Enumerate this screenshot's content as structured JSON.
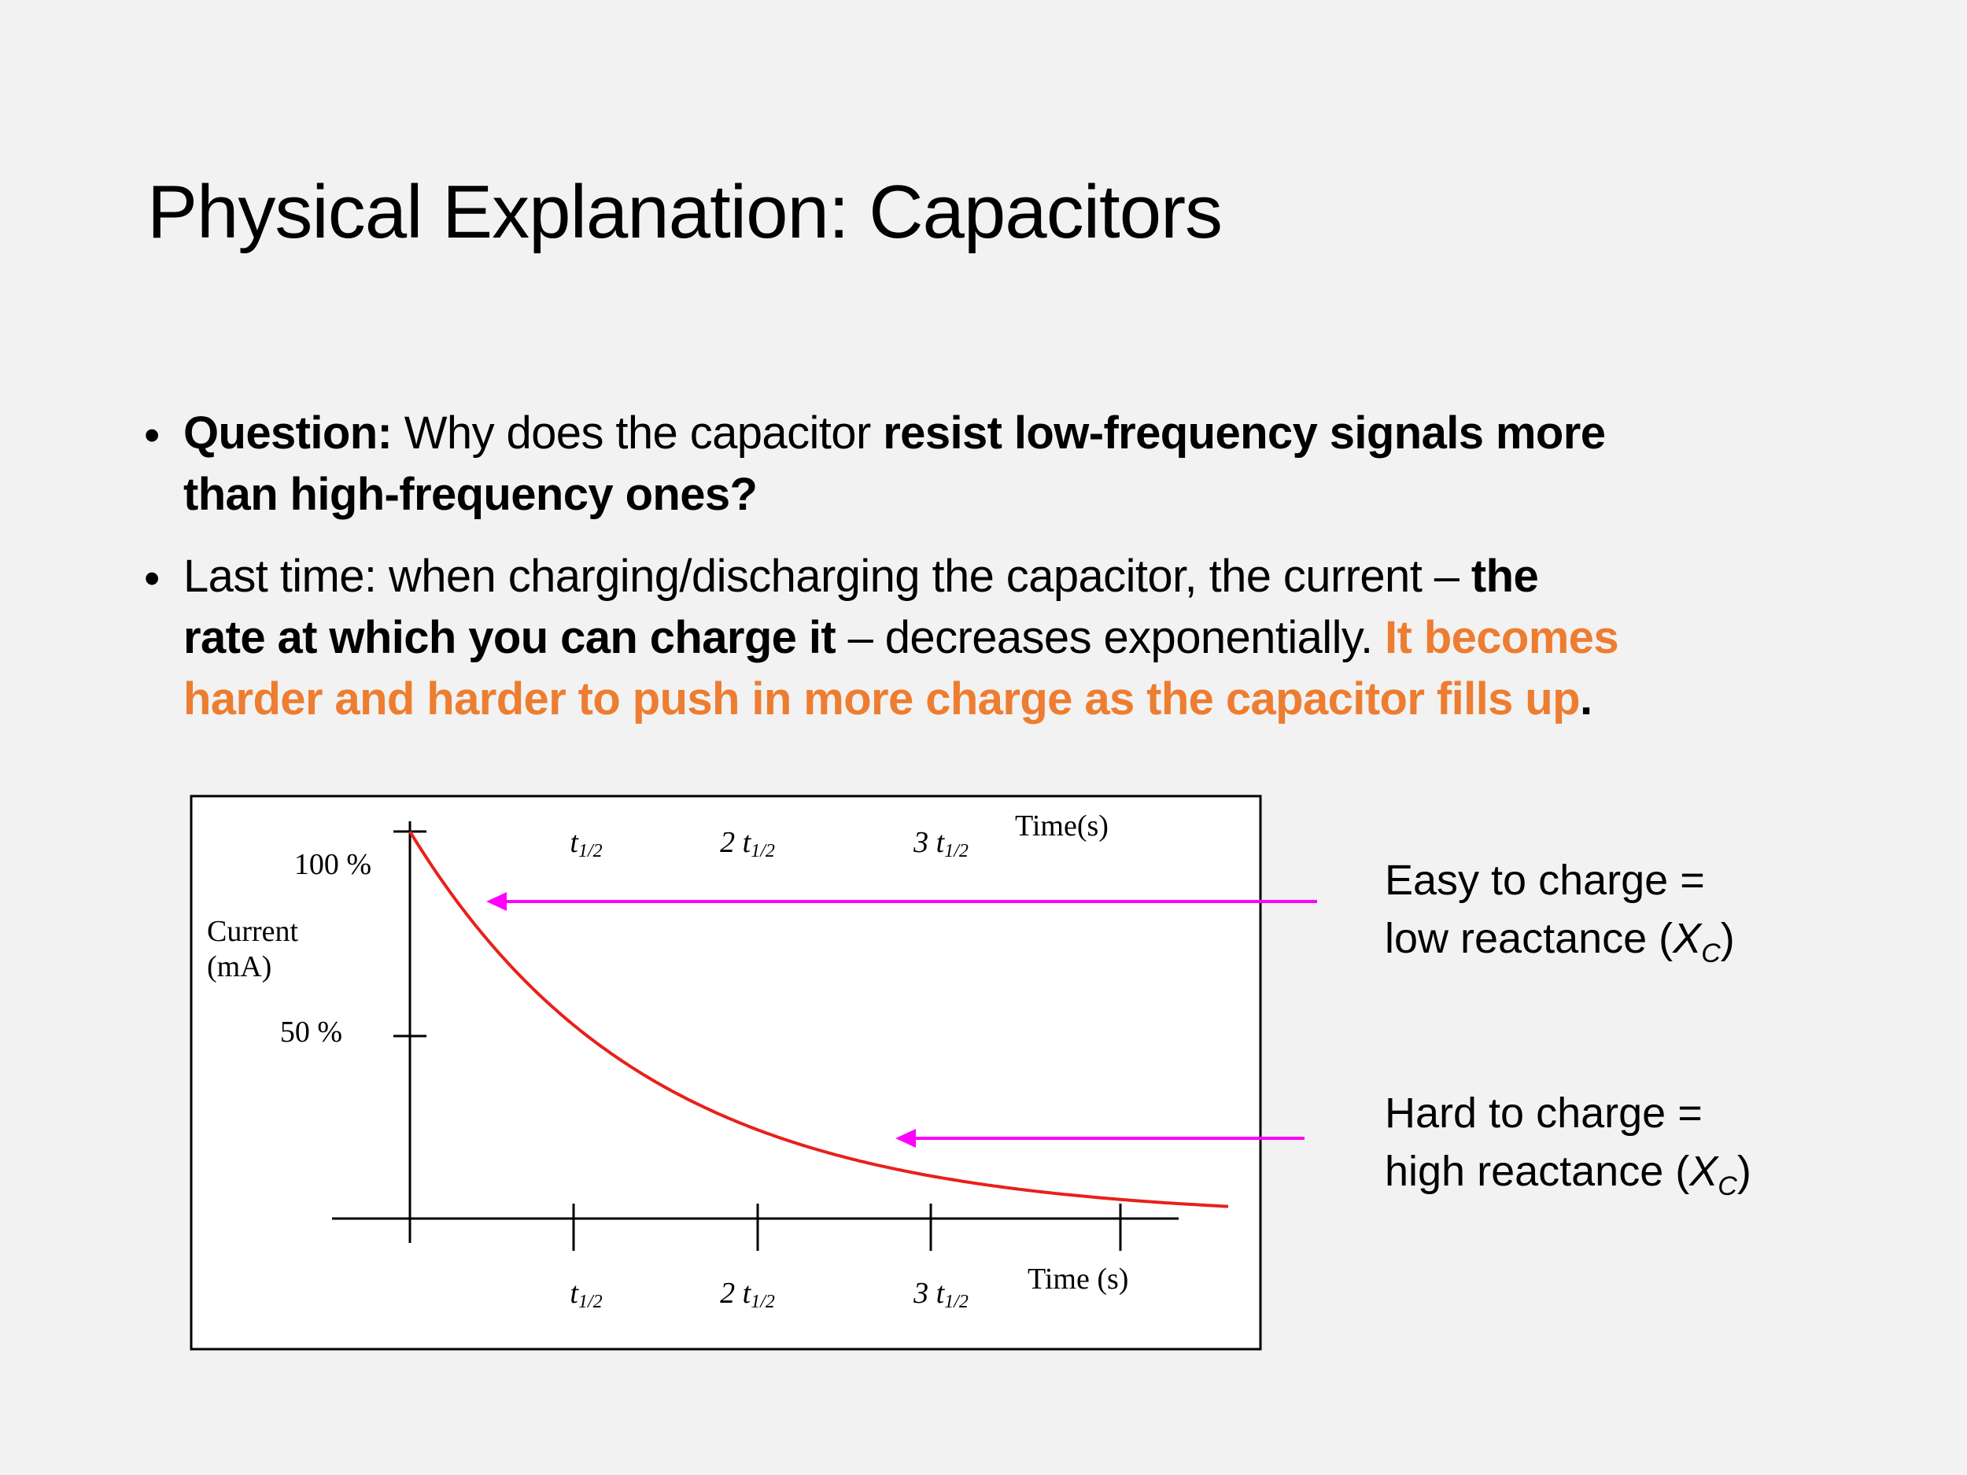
{
  "slide": {
    "title": "Physical Explanation: Capacitors",
    "bullet_glyph": "•",
    "bullets": [
      {
        "lines": [
          [
            "Question:",
            " Why does the capacitor ",
            "resist low-frequency signals more"
          ],
          [
            "than high-frequency ones?"
          ]
        ]
      },
      {
        "lines": [
          [
            "Last time: when charging/discharging the capacitor, the current – ",
            "the"
          ],
          [
            "rate at which you can charge it",
            " – decreases exponentially. ",
            "It becomes"
          ],
          [
            "harder and harder to push in more charge as the capacitor fills up",
            "."
          ]
        ]
      }
    ],
    "notes": {
      "easy_line1": "Easy to charge =",
      "easy_line2": "low reactance (",
      "hard_line1": "Hard to charge =",
      "hard_line2": "high reactance (",
      "symbol": "X",
      "symbol_sub": "C",
      "close_paren": ")"
    },
    "colors": {
      "accent": "#ed7d31",
      "arrow": "#ff00ff",
      "curve": "#e8201a",
      "background": "#f2f2f2"
    }
  },
  "chart_data": {
    "type": "line",
    "title": "",
    "ylabel_line1": "Current",
    "ylabel_line2": "(mA)",
    "xlabel": "Time (s)",
    "xlabel_top": "Time(s)",
    "y_ticks": [
      "100 %",
      "50 %"
    ],
    "x_tick_labels": [
      {
        "t": "t",
        "s": "1/2",
        "pre": ""
      },
      {
        "t": "t",
        "s": "1/2",
        "pre": "2 "
      },
      {
        "t": "t",
        "s": "1/2",
        "pre": "3 "
      }
    ],
    "x_halflives": [
      0,
      1,
      2,
      3,
      4,
      5
    ],
    "series": [
      {
        "name": "Current",
        "values": [
          100,
          50,
          25,
          12.5,
          6.25,
          3.125
        ]
      }
    ],
    "ylim": [
      0,
      100
    ],
    "xlim_halflives": [
      0,
      5
    ]
  }
}
